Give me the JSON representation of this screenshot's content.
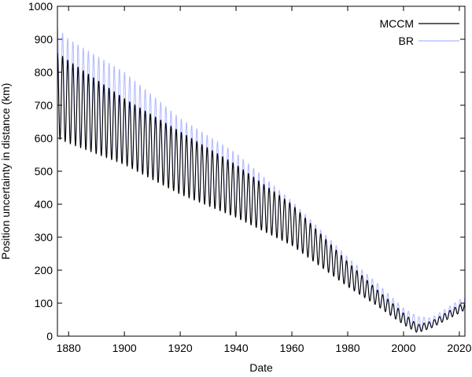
{
  "chart_data": {
    "type": "line",
    "title": "",
    "xlabel": "Date",
    "ylabel": "Position uncertainty in distance (km)",
    "xlim": [
      1876,
      2022
    ],
    "ylim": [
      0,
      1000
    ],
    "x_ticks": [
      1880,
      1900,
      1920,
      1940,
      1960,
      1980,
      2000,
      2020
    ],
    "y_ticks": [
      0,
      100,
      200,
      300,
      400,
      500,
      600,
      700,
      800,
      900,
      1000
    ],
    "x_tick_labels": [
      "1880",
      "1900",
      "1920",
      "1940",
      "1960",
      "1980",
      "2000",
      "2020"
    ],
    "y_tick_labels": [
      "0",
      "100",
      "200",
      "300",
      "400",
      "500",
      "600",
      "700",
      "800",
      "900",
      "1000"
    ],
    "grid": false,
    "legend_position": "top-right",
    "oscillation_period_years": 1.85,
    "series": [
      {
        "name": "MCCM",
        "color": "#000000",
        "envelope_x": [
          1876,
          1880,
          1900,
          1920,
          1940,
          1960,
          1980,
          1990,
          2000,
          2005,
          2010,
          2020,
          2022
        ],
        "upper": [
          860,
          835,
          720,
          620,
          520,
          400,
          225,
          145,
          70,
          35,
          45,
          95,
          100
        ],
        "lower": [
          600,
          585,
          520,
          430,
          360,
          275,
          150,
          95,
          35,
          10,
          25,
          70,
          80
        ]
      },
      {
        "name": "BR",
        "color": "#b0b8ff",
        "envelope_x": [
          1876,
          1880,
          1900,
          1920,
          1940,
          1960,
          1980,
          1990,
          2000,
          2005,
          2010,
          2020,
          2022
        ],
        "upper": [
          935,
          900,
          800,
          660,
          555,
          410,
          240,
          165,
          85,
          60,
          55,
          110,
          120
        ],
        "lower": [
          615,
          600,
          530,
          440,
          370,
          280,
          155,
          100,
          40,
          15,
          30,
          75,
          85
        ]
      }
    ]
  }
}
